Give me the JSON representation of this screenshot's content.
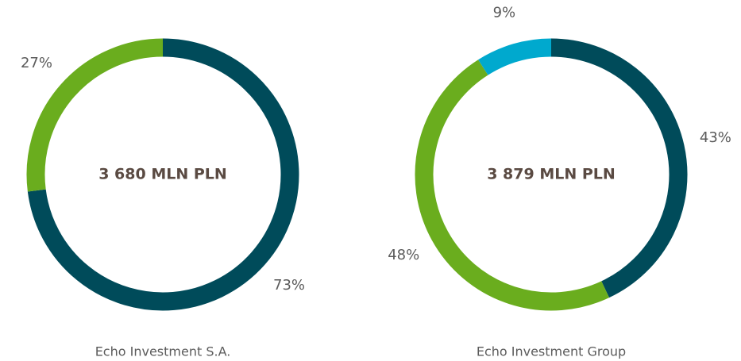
{
  "chart_data": [
    {
      "type": "pie",
      "center_text": "3 680 MLN PLN",
      "title": "Echo Investment S.A.",
      "series": [
        {
          "color": "#004b5a",
          "values": [
            73
          ],
          "value_labels": [
            "73%"
          ]
        },
        {
          "color": "#6aad1e",
          "values": [
            27
          ],
          "value_labels": [
            "27%"
          ]
        }
      ]
    },
    {
      "type": "pie",
      "center_text": "3 879 MLN PLN",
      "title": "Echo Investment Group",
      "series": [
        {
          "color": "#004b5a",
          "values": [
            43
          ],
          "value_labels": [
            "43%"
          ]
        },
        {
          "color": "#6aad1e",
          "values": [
            48
          ],
          "value_labels": [
            "48%"
          ]
        },
        {
          "color": "#00a9ce",
          "values": [
            9
          ],
          "value_labels": [
            "9%"
          ]
        }
      ]
    }
  ]
}
